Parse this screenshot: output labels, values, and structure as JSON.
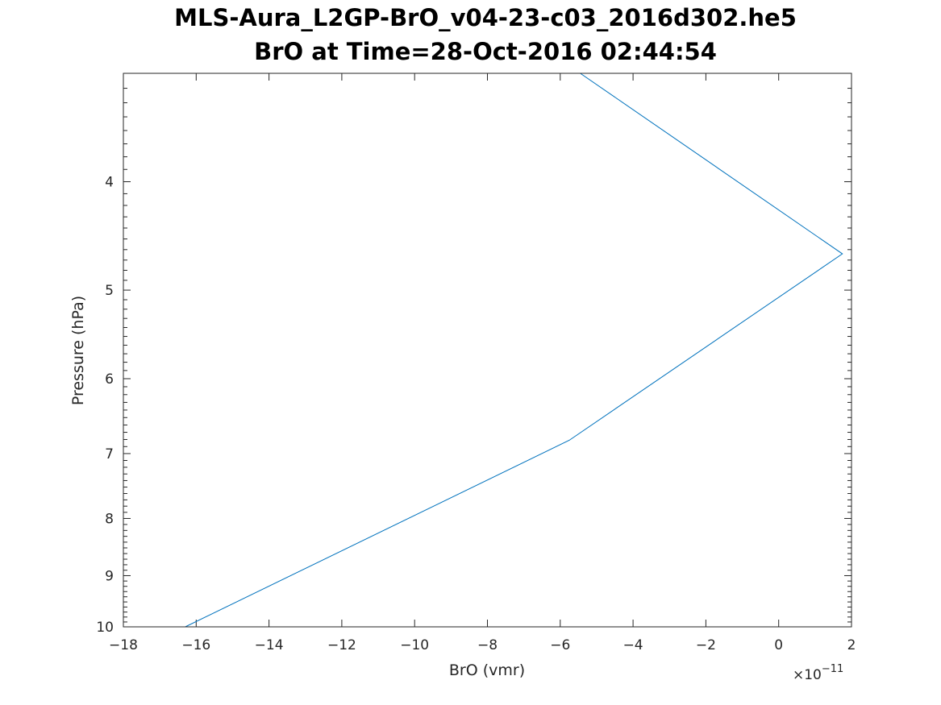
{
  "chart_data": {
    "type": "line",
    "title": "MLS-Aura_L2GP-BrO_v04-23-c03_2016d302.he5",
    "subtitle": "BrO at Time=28-Oct-2016 02:44:54",
    "xlabel": "BrO (vmr)",
    "ylabel": "Pressure (hPa)",
    "x_exponent_base": "×10",
    "x_exponent": "−11",
    "xlim": [
      -18,
      2
    ],
    "ylim": [
      3.2,
      10
    ],
    "yscale": "log",
    "ydirection": "reverse",
    "grid": false,
    "x_ticks": [
      -18,
      -16,
      -14,
      -12,
      -10,
      -8,
      -6,
      -4,
      -2,
      0,
      2
    ],
    "x_tick_labels": [
      "−18",
      "−16",
      "−14",
      "−12",
      "−10",
      "−8",
      "−6",
      "−4",
      "−2",
      "0",
      "2"
    ],
    "y_ticks": [
      4,
      5,
      6,
      7,
      8,
      9,
      10
    ],
    "y_tick_labels": [
      "4",
      "5",
      "6",
      "7",
      "8",
      "9",
      "10"
    ],
    "series": [
      {
        "color": "#0072bd",
        "x": [
          -5.45,
          1.75,
          -5.75,
          -16.3
        ],
        "y": [
          3.2,
          4.64,
          6.81,
          10.0
        ]
      }
    ]
  }
}
